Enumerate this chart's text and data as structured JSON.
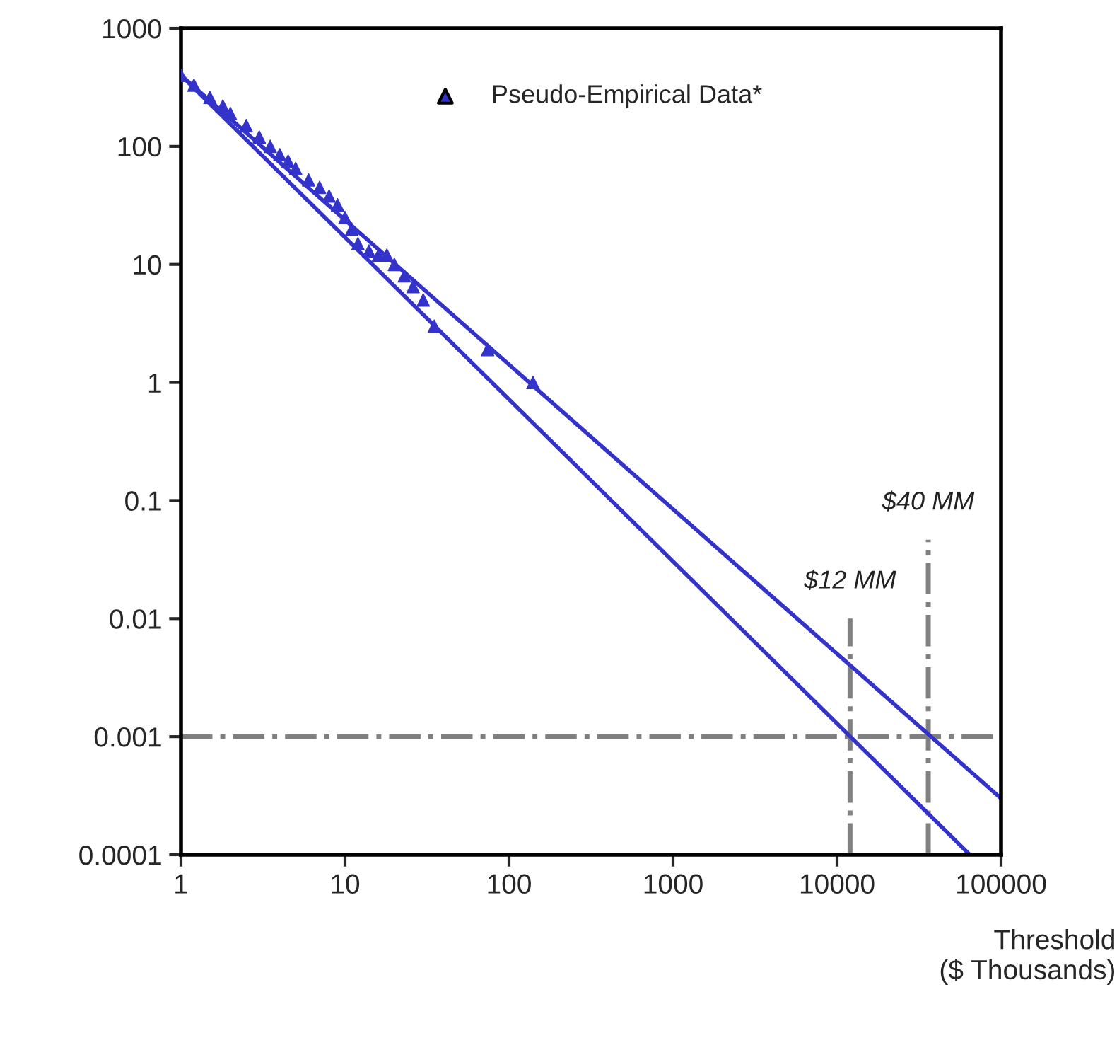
{
  "chart_data": {
    "type": "line",
    "xlabel": "Threshold\n($ Thousands)",
    "log": "xy",
    "grid": false,
    "legend": "top",
    "xlim": [
      1,
      100000
    ],
    "xticks": [
      1,
      10,
      100,
      1000,
      10000,
      100000
    ],
    "ylim": [
      0.0001,
      1000
    ],
    "yticks": [
      0.0001,
      0.001,
      0.01,
      0.1,
      1,
      10,
      100,
      1000
    ],
    "series": [
      {
        "name": "Pseudo-Empirical Data*",
        "type": "scatter",
        "marker": "triangle",
        "color": "#3333cc",
        "x": [
          1,
          1.2,
          1.5,
          1.8,
          2,
          2.5,
          3,
          3.5,
          4,
          4.5,
          5,
          6,
          7,
          8,
          9,
          10,
          11,
          12,
          14,
          16,
          18,
          20,
          23,
          26,
          30,
          35,
          74,
          140
        ],
        "values": [
          400,
          330,
          260,
          220,
          190,
          150,
          120,
          100,
          85,
          75,
          65,
          52,
          45,
          38,
          32,
          25,
          20,
          15,
          13,
          12,
          12,
          10,
          8,
          6.5,
          5,
          3,
          1.9,
          1
        ]
      },
      {
        "color": "#3333cc",
        "x": [
          1,
          64500
        ],
        "values": [
          400,
          0.0001
        ]
      },
      {
        "color": "#3333cc",
        "x": [
          1,
          100000
        ],
        "values": [
          400,
          0.0003
        ]
      }
    ],
    "ref_lines": [
      {
        "axis": "x",
        "value": 12000,
        "label": "$12 MM",
        "color": "#808080",
        "line_style": "dashdot"
      },
      {
        "axis": "x",
        "value": 36000,
        "label": "$40 MM",
        "color": "#808080",
        "line_style": "dashdot"
      },
      {
        "axis": "y",
        "value": 0.001,
        "color": "#808080",
        "line_style": "dashdot"
      }
    ]
  }
}
